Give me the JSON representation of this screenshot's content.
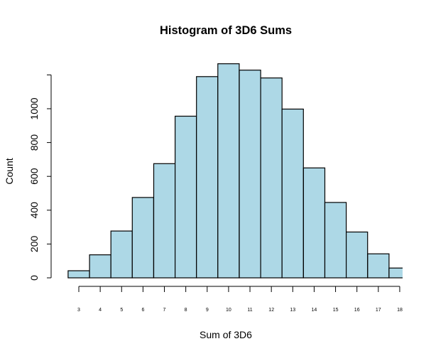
{
  "chart_data": {
    "type": "bar",
    "subtype": "histogram",
    "title": "Histogram of 3D6 Sums",
    "xlabel": "Sum of 3D6",
    "ylabel": "Count",
    "categories": [
      "3",
      "4",
      "5",
      "6",
      "7",
      "8",
      "9",
      "10",
      "11",
      "12",
      "13",
      "14",
      "15",
      "16",
      "17",
      "18"
    ],
    "values": [
      42,
      136,
      277,
      475,
      675,
      956,
      1190,
      1266,
      1228,
      1182,
      998,
      650,
      446,
      271,
      142,
      58
    ],
    "x_ticks": [
      "3",
      "4",
      "5",
      "6",
      "7",
      "8",
      "9",
      "10",
      "11",
      "12",
      "13",
      "14",
      "15",
      "16",
      "17",
      "18"
    ],
    "y_ticks": [
      0,
      200,
      400,
      600,
      800,
      1000,
      1200
    ],
    "y_tick_labels": [
      "0",
      "200",
      "400",
      "600",
      "800",
      "1000",
      ""
    ],
    "ylim": [
      0,
      1200
    ],
    "xlim": [
      2.5,
      18.5
    ],
    "bar_color": "#ADD8E6",
    "border_color": "#000000",
    "grid": false,
    "legend": null
  }
}
